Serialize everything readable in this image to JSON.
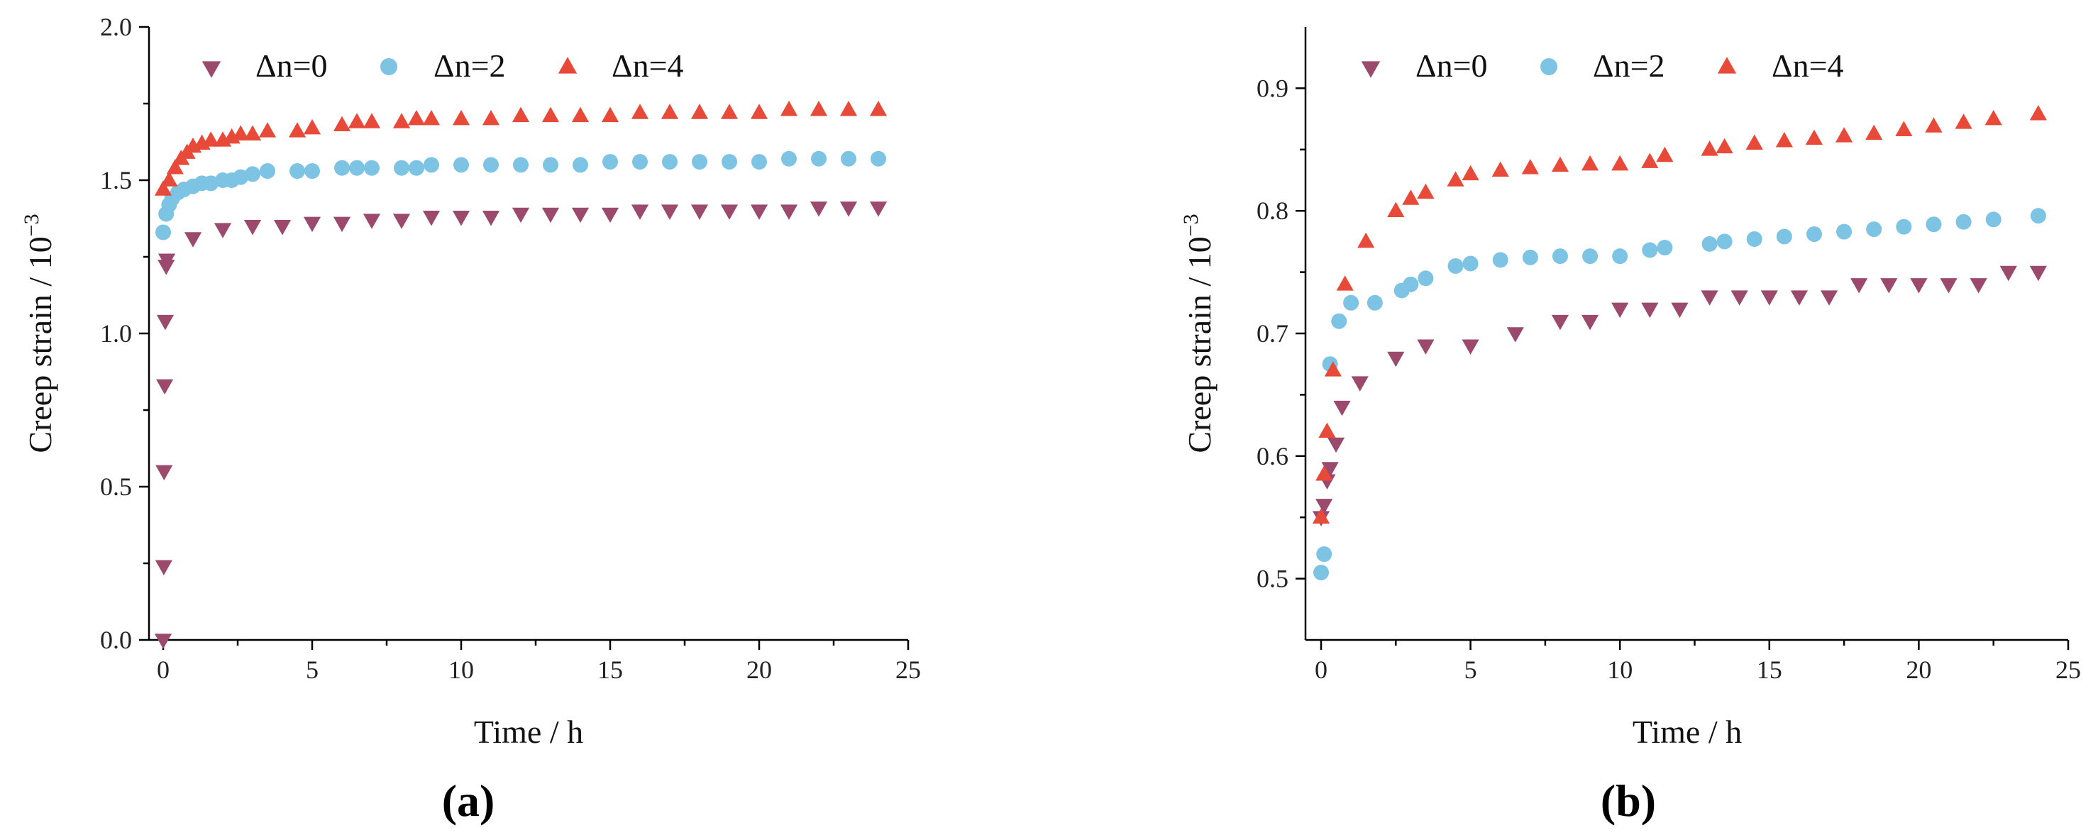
{
  "colors": {
    "dn0": "#9B4A6E",
    "dn2": "#7CC3E4",
    "dn4": "#E84A3A"
  },
  "chart_data": [
    {
      "type": "scatter",
      "panel": "(a)",
      "xlabel": "Time / h",
      "ylabel": "Creep strain / 10",
      "ylabel_exp": "−3",
      "xlim": [
        0,
        25
      ],
      "ylim": [
        0,
        2.0
      ],
      "xticks": [
        0,
        5,
        10,
        15,
        20,
        25
      ],
      "xtick_labels": [
        "0",
        "5",
        "10",
        "15",
        "20",
        "25"
      ],
      "yticks": [
        0,
        0.5,
        1.0,
        1.5,
        2.0
      ],
      "ytick_labels": [
        "0.0",
        "0.5",
        "1.0",
        "1.5",
        "2.0"
      ],
      "legend": "top-left",
      "series": [
        {
          "name": "Δn=0",
          "marker": "triangle-down",
          "color_key": "dn0",
          "x": [
            0,
            0.02,
            0.03,
            0.05,
            0.07,
            0.1,
            0.12,
            1,
            2,
            3,
            4,
            5,
            6,
            7,
            8,
            9,
            10,
            11,
            12,
            13,
            14,
            15,
            16,
            17,
            18,
            19,
            20,
            21,
            22,
            23,
            24
          ],
          "y": [
            0,
            0.24,
            0.55,
            0.83,
            1.04,
            1.22,
            1.24,
            1.31,
            1.34,
            1.35,
            1.35,
            1.36,
            1.36,
            1.37,
            1.37,
            1.38,
            1.38,
            1.38,
            1.39,
            1.39,
            1.39,
            1.39,
            1.4,
            1.4,
            1.4,
            1.4,
            1.4,
            1.4,
            1.41,
            1.41,
            1.41
          ]
        },
        {
          "name": "Δn=2",
          "marker": "circle",
          "color_key": "dn2",
          "x": [
            0,
            0.1,
            0.2,
            0.3,
            0.5,
            0.7,
            1,
            1.3,
            1.6,
            2,
            2.3,
            2.6,
            3,
            3.5,
            4.5,
            5,
            6,
            6.5,
            7,
            8,
            8.5,
            9,
            10,
            11,
            12,
            13,
            14,
            15,
            16,
            17,
            18,
            19,
            20,
            21,
            22,
            23,
            24
          ],
          "y": [
            1.33,
            1.39,
            1.42,
            1.44,
            1.46,
            1.47,
            1.48,
            1.49,
            1.49,
            1.5,
            1.5,
            1.51,
            1.52,
            1.53,
            1.53,
            1.53,
            1.54,
            1.54,
            1.54,
            1.54,
            1.54,
            1.55,
            1.55,
            1.55,
            1.55,
            1.55,
            1.55,
            1.56,
            1.56,
            1.56,
            1.56,
            1.56,
            1.56,
            1.57,
            1.57,
            1.57,
            1.57
          ]
        },
        {
          "name": "Δn=4",
          "marker": "triangle-up",
          "color_key": "dn4",
          "x": [
            0,
            0.2,
            0.4,
            0.6,
            0.8,
            1,
            1.3,
            1.6,
            2,
            2.3,
            2.6,
            3,
            3.5,
            4.5,
            5,
            6,
            6.5,
            7,
            8,
            8.5,
            9,
            10,
            11,
            12,
            13,
            14,
            15,
            16,
            17,
            18,
            19,
            20,
            21,
            22,
            23,
            24
          ],
          "y": [
            1.47,
            1.5,
            1.54,
            1.57,
            1.59,
            1.61,
            1.62,
            1.63,
            1.63,
            1.64,
            1.65,
            1.65,
            1.66,
            1.66,
            1.67,
            1.68,
            1.69,
            1.69,
            1.69,
            1.7,
            1.7,
            1.7,
            1.7,
            1.71,
            1.71,
            1.71,
            1.71,
            1.72,
            1.72,
            1.72,
            1.72,
            1.72,
            1.73,
            1.73,
            1.73,
            1.73
          ]
        }
      ]
    },
    {
      "type": "scatter",
      "panel": "(b)",
      "xlabel": "Time / h",
      "ylabel": "Creep strain / 10",
      "ylabel_exp": "−3",
      "xlim": [
        0,
        25
      ],
      "ylim": [
        0.45,
        0.95
      ],
      "xticks": [
        0,
        5,
        10,
        15,
        20,
        25
      ],
      "xtick_labels": [
        "0",
        "5",
        "10",
        "15",
        "20",
        "25"
      ],
      "yticks": [
        0.5,
        0.6,
        0.7,
        0.8,
        0.9
      ],
      "ytick_labels": [
        "0.5",
        "0.6",
        "0.7",
        "0.8",
        "0.9"
      ],
      "legend": "top-left",
      "series": [
        {
          "name": "Δn=0",
          "marker": "triangle-down",
          "color_key": "dn0",
          "x": [
            0,
            0.1,
            0.2,
            0.3,
            0.5,
            0.7,
            1.3,
            2.5,
            3.5,
            5,
            6.5,
            8,
            9,
            10,
            11,
            12,
            13,
            14,
            15,
            16,
            17,
            18,
            19,
            20,
            21,
            22,
            23,
            24
          ],
          "y": [
            0.55,
            0.56,
            0.58,
            0.59,
            0.61,
            0.64,
            0.66,
            0.68,
            0.69,
            0.69,
            0.7,
            0.71,
            0.71,
            0.72,
            0.72,
            0.72,
            0.73,
            0.73,
            0.73,
            0.73,
            0.73,
            0.74,
            0.74,
            0.74,
            0.74,
            0.74,
            0.75,
            0.75
          ]
        },
        {
          "name": "Δn=2",
          "marker": "circle",
          "color_key": "dn2",
          "x": [
            0,
            0.1,
            0.3,
            0.6,
            1,
            1.8,
            2.7,
            3,
            3.5,
            4.5,
            5,
            6,
            7,
            8,
            9,
            10,
            11,
            11.5,
            13,
            13.5,
            14.5,
            15.5,
            16.5,
            17.5,
            18.5,
            19.5,
            20.5,
            21.5,
            22.5,
            24
          ],
          "y": [
            0.505,
            0.52,
            0.675,
            0.71,
            0.725,
            0.725,
            0.735,
            0.74,
            0.745,
            0.755,
            0.757,
            0.76,
            0.762,
            0.763,
            0.763,
            0.763,
            0.768,
            0.77,
            0.773,
            0.775,
            0.777,
            0.779,
            0.781,
            0.783,
            0.785,
            0.787,
            0.789,
            0.791,
            0.793,
            0.796
          ]
        },
        {
          "name": "Δn=4",
          "marker": "triangle-up",
          "color_key": "dn4",
          "x": [
            0,
            0.1,
            0.2,
            0.4,
            0.8,
            1.5,
            2.5,
            3,
            3.5,
            4.5,
            5,
            6,
            7,
            8,
            9,
            10,
            11,
            11.5,
            13,
            13.5,
            14.5,
            15.5,
            16.5,
            17.5,
            18.5,
            19.5,
            20.5,
            21.5,
            22.5,
            24
          ],
          "y": [
            0.55,
            0.585,
            0.62,
            0.67,
            0.74,
            0.775,
            0.8,
            0.81,
            0.815,
            0.825,
            0.83,
            0.833,
            0.835,
            0.837,
            0.838,
            0.838,
            0.84,
            0.845,
            0.85,
            0.852,
            0.855,
            0.857,
            0.859,
            0.861,
            0.863,
            0.866,
            0.869,
            0.872,
            0.875,
            0.879
          ]
        }
      ]
    }
  ]
}
